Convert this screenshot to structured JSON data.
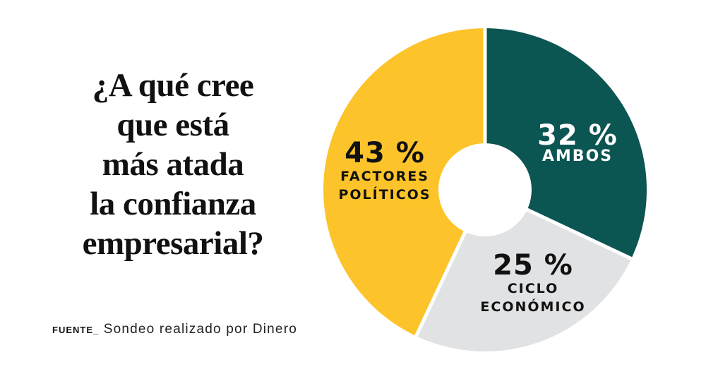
{
  "question": {
    "lines": [
      "¿A qué cree",
      "que está",
      "más atada",
      "la confianza",
      "empresarial?"
    ]
  },
  "source": {
    "label": "FUENTE_",
    "text": "Sondeo realizado por Dinero"
  },
  "labels": {
    "ambos": {
      "pct": "32 %",
      "name1": "AMBOS"
    },
    "ciclo": {
      "pct": "25 %",
      "name1": "CICLO",
      "name2": "ECONÓMICO"
    },
    "factores": {
      "pct": "43 %",
      "name1": "FACTORES",
      "name2": "POLÍTICOS"
    }
  },
  "colors": {
    "ambos": "#0b5552",
    "ciclo": "#e1e2e4",
    "factores": "#fcc42a"
  },
  "chart_data": {
    "type": "pie",
    "variant": "donut",
    "title": "¿A qué cree que está más atada la confianza empresarial?",
    "categories": [
      "Ambos",
      "Ciclo económico",
      "Factores políticos"
    ],
    "values": [
      32,
      25,
      43
    ],
    "unit": "%",
    "colors": [
      "#0b5552",
      "#e1e2e4",
      "#fcc42a"
    ],
    "start_angle": "12 o'clock, clockwise",
    "legend": "none (labels inside slices)",
    "source": "FUENTE_ Sondeo realizado por Dinero"
  }
}
